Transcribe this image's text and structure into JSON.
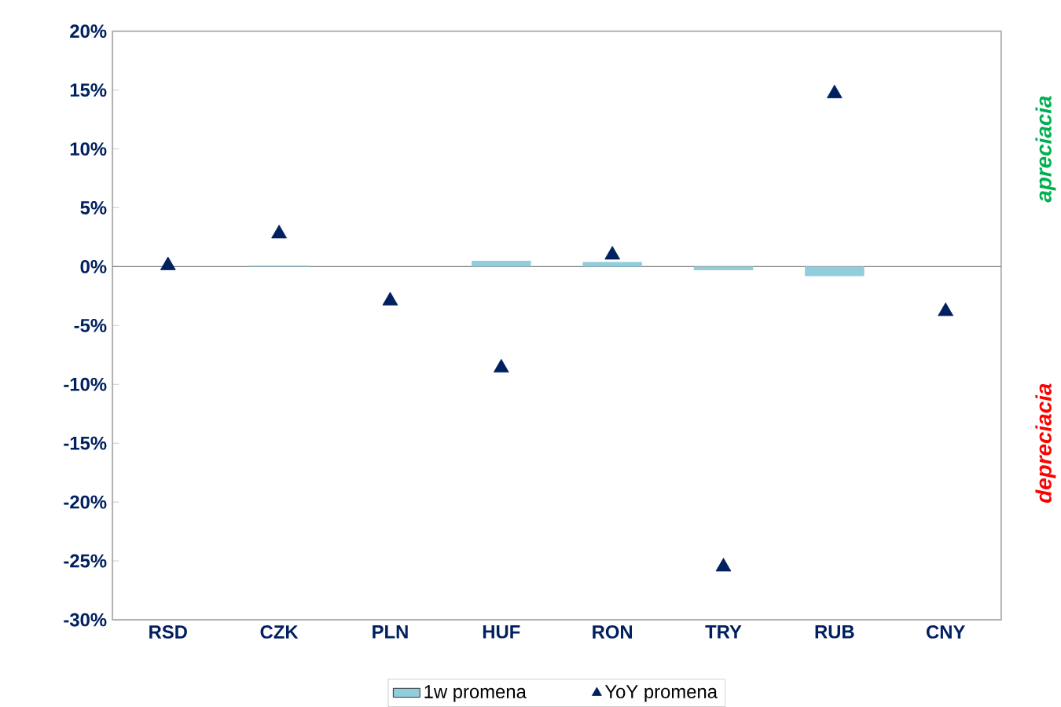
{
  "chart_data": {
    "type": "bar",
    "categories": [
      "RSD",
      "CZK",
      "PLN",
      "HUF",
      "RON",
      "TRY",
      "RUB",
      "CNY"
    ],
    "series": [
      {
        "name": "1w promena",
        "color": "#92cddc",
        "values": [
          0,
          0.1,
          0,
          0.5,
          0.4,
          -0.3,
          -0.8,
          0
        ]
      },
      {
        "name": "YoY promena",
        "type": "scatter",
        "marker": "triangle",
        "color": "#002060",
        "values": [
          0.1,
          2.8,
          -2.9,
          -8.6,
          1.0,
          -25.5,
          14.7,
          -3.8
        ]
      }
    ],
    "ylim": [
      -30,
      20
    ],
    "yticks": [
      {
        "value": -30,
        "label": "-30%"
      },
      {
        "value": -25,
        "label": "-25%"
      },
      {
        "value": -20,
        "label": "-20%"
      },
      {
        "value": -15,
        "label": "-15%"
      },
      {
        "value": -10,
        "label": "-10%"
      },
      {
        "value": -5,
        "label": "-5%"
      },
      {
        "value": 0,
        "label": "0%"
      },
      {
        "value": 5,
        "label": "5%"
      },
      {
        "value": 10,
        "label": "10%"
      },
      {
        "value": 15,
        "label": "15%"
      },
      {
        "value": 20,
        "label": "20%"
      }
    ],
    "annotations": [
      "apreciacia",
      "depreciacia"
    ],
    "legend": "bottom"
  }
}
